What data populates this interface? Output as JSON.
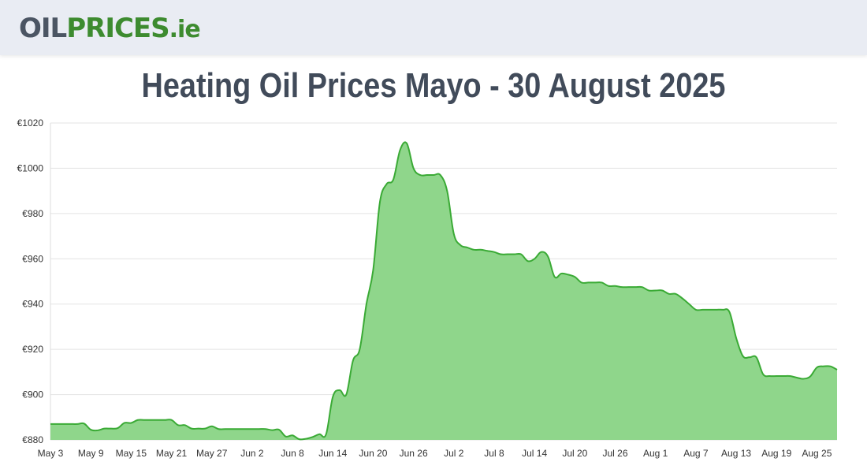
{
  "site": {
    "logo_part1": "OIL",
    "logo_part2": "PRICES",
    "logo_part3": ".ie"
  },
  "page_title": "Heating Oil Prices Mayo - 30 August 2025",
  "colors": {
    "header_bg": "#e9ecf3",
    "area_fill": "#8fd68b",
    "line": "#3aaa35",
    "title": "#414b5a"
  },
  "chart_data": {
    "type": "area",
    "title": "",
    "xlabel": "",
    "ylabel": "",
    "ylim": [
      880,
      1020
    ],
    "y_ticks": [
      880,
      900,
      920,
      940,
      960,
      980,
      1000,
      1020
    ],
    "y_tick_labels": [
      "€880",
      "€900",
      "€920",
      "€940",
      "€960",
      "€980",
      "€1000",
      "€1020"
    ],
    "x_tick_labels": [
      "May 3",
      "May 9",
      "May 15",
      "May 21",
      "May 27",
      "Jun 2",
      "Jun 8",
      "Jun 14",
      "Jun 20",
      "Jun 26",
      "Jul 2",
      "Jul 8",
      "Jul 14",
      "Jul 20",
      "Jul 26",
      "Aug 1",
      "Aug 7",
      "Aug 13",
      "Aug 19",
      "Aug 25"
    ],
    "x_start": "May 3",
    "x_end": "Aug 30",
    "grid": true,
    "legend": "none",
    "series": [
      {
        "values": [
          887,
          887,
          887,
          887,
          887,
          887.2,
          884.5,
          884.2,
          885,
          885,
          885.2,
          887.5,
          887.5,
          888.8,
          888.8,
          888.8,
          888.8,
          888.8,
          888.8,
          886.5,
          886.5,
          885,
          885,
          885,
          886,
          884.8,
          884.8,
          884.8,
          884.8,
          884.8,
          884.8,
          884.8,
          884.8,
          884.3,
          884.5,
          881.5,
          882,
          880.3,
          880.5,
          881.3,
          882.5,
          882.5,
          899,
          902,
          900,
          915,
          920,
          940,
          955,
          985,
          993,
          995,
          1008,
          1011,
          1000,
          997,
          997,
          997,
          997,
          990,
          971,
          966,
          965,
          964,
          964,
          963.5,
          963,
          962,
          962,
          962,
          962,
          959,
          960,
          963,
          961,
          952,
          953.5,
          953,
          952,
          949.5,
          949.5,
          949.5,
          949.5,
          948,
          948,
          947.5,
          947.5,
          947.5,
          947.5,
          946,
          946,
          946,
          944.5,
          944.5,
          942.5,
          940,
          937.5,
          937.5,
          937.5,
          937.5,
          937.5,
          936.5,
          925,
          917,
          916.5,
          916.5,
          909,
          908.2,
          908.2,
          908.2,
          908.2,
          907.5,
          907,
          908,
          912,
          912.5,
          912.5,
          911
        ]
      }
    ]
  }
}
